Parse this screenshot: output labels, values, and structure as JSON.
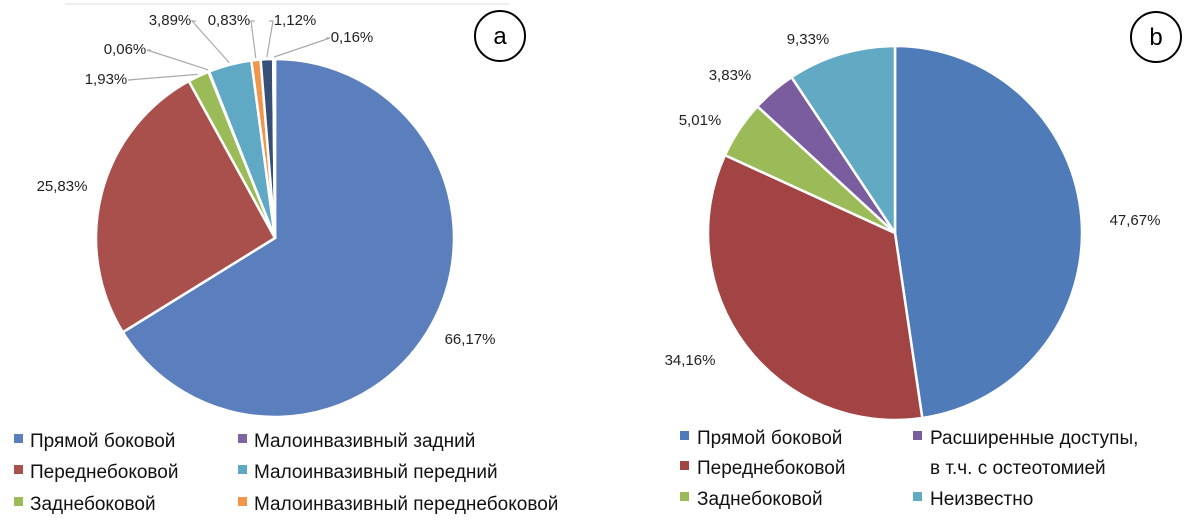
{
  "chart_data": [
    {
      "type": "pie",
      "panel_label": "a",
      "legend": [
        "Прямой боковой",
        "Переднебоковой",
        "Заднебоковой",
        "Малоинвазивный задний",
        "Малоинвазивный передний",
        "Малоинвазивный переднебоковой"
      ],
      "legend_placement": "bottom",
      "slices": [
        {
          "name": "Прямой боковой",
          "value": 66.17,
          "label": "66,17%",
          "color": "#5b7fbc"
        },
        {
          "name": "Переднебоковой",
          "value": 25.83,
          "label": "25,83%",
          "color": "#a9504d"
        },
        {
          "name": "Заднебоковой",
          "value": 1.93,
          "label": "1,93%",
          "color": "#9bbb59"
        },
        {
          "name": "Малоинвазивный задний",
          "value": 0.06,
          "label": "0,06%",
          "color": "#8064a2"
        },
        {
          "name": "Малоинвазивный передний",
          "value": 3.89,
          "label": "3,89%",
          "color": "#5fa9c4"
        },
        {
          "name": "Малоинвазивный переднебоковой",
          "value": 0.83,
          "label": "0,83%",
          "color": "#f0954a"
        },
        {
          "name": "",
          "value": 1.12,
          "label": "1,12%",
          "color": "#384f78"
        },
        {
          "name": "",
          "value": 0.16,
          "label": "0,16%",
          "color": "#9a4644"
        }
      ]
    },
    {
      "type": "pie",
      "panel_label": "b",
      "legend": [
        "Прямой боковой",
        "Переднебоковой",
        "Заднебоковой",
        "Расширенные доступы,",
        "в т.ч. с остеотомией",
        "Неизвестно"
      ],
      "legend_placement": "bottom",
      "slices": [
        {
          "name": "Прямой боковой",
          "value": 47.67,
          "label": "47,67%",
          "color": "#4f7bb9"
        },
        {
          "name": "Переднебоковой",
          "value": 34.16,
          "label": "34,16%",
          "color": "#a34444"
        },
        {
          "name": "Заднебоковой",
          "value": 5.01,
          "label": "5,01%",
          "color": "#9bbb59"
        },
        {
          "name": "Расширенные доступы, в т.ч. с остеотомией",
          "value": 3.83,
          "label": "3,83%",
          "color": "#7a5d9e"
        },
        {
          "name": "Неизвестно",
          "value": 9.33,
          "label": "9,33%",
          "color": "#62a9c4"
        }
      ]
    }
  ]
}
